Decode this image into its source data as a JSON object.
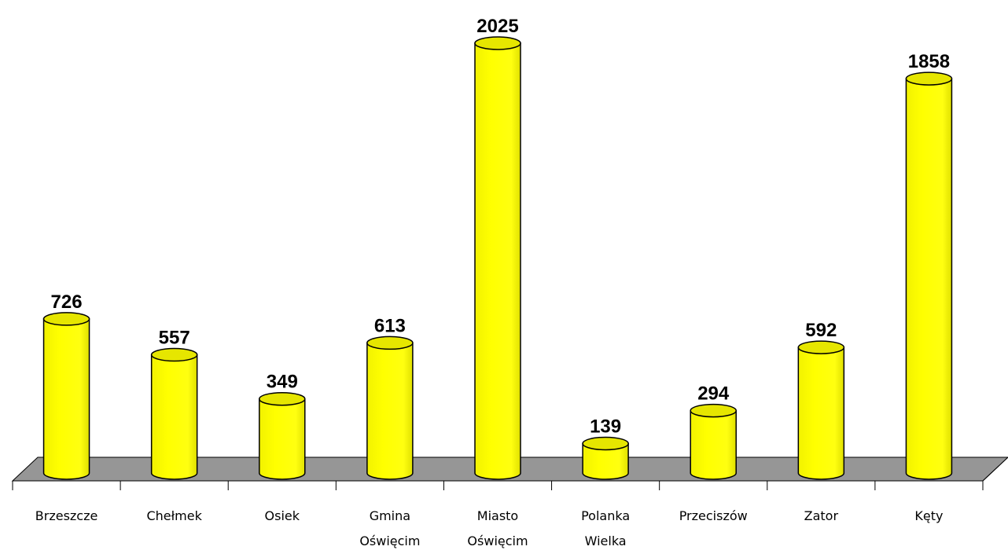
{
  "chart_data": {
    "type": "bar",
    "style": "3d-cylinder",
    "categories": [
      "Brzeszcze",
      "Chełmek",
      "Osiek",
      "Gmina Oświęcim",
      "Miasto Oświęcim",
      "Polanka Wielka",
      "Przeciszów",
      "Zator",
      "Kęty"
    ],
    "category_lines": [
      [
        "Brzeszcze"
      ],
      [
        "Chełmek"
      ],
      [
        "Osiek"
      ],
      [
        "Gmina",
        "Oświęcim"
      ],
      [
        "Miasto",
        "Oświęcim"
      ],
      [
        "Polanka",
        "Wielka"
      ],
      [
        "Przeciszów"
      ],
      [
        "Zator"
      ],
      [
        "Kęty"
      ]
    ],
    "series": [
      {
        "values": [
          726,
          557,
          349,
          613,
          2025,
          139,
          294,
          592,
          1858
        ]
      }
    ],
    "value_labels": [
      "726",
      "557",
      "349",
      "613",
      "2025",
      "139",
      "294",
      "592",
      "1858"
    ],
    "ylim": [
      0,
      2025
    ],
    "grid": false,
    "legend": "none",
    "colors": {
      "bar_fill": "#ffff00",
      "bar_shade": "#e6e600",
      "bar_outline": "#000000",
      "floor": "#969696"
    }
  }
}
